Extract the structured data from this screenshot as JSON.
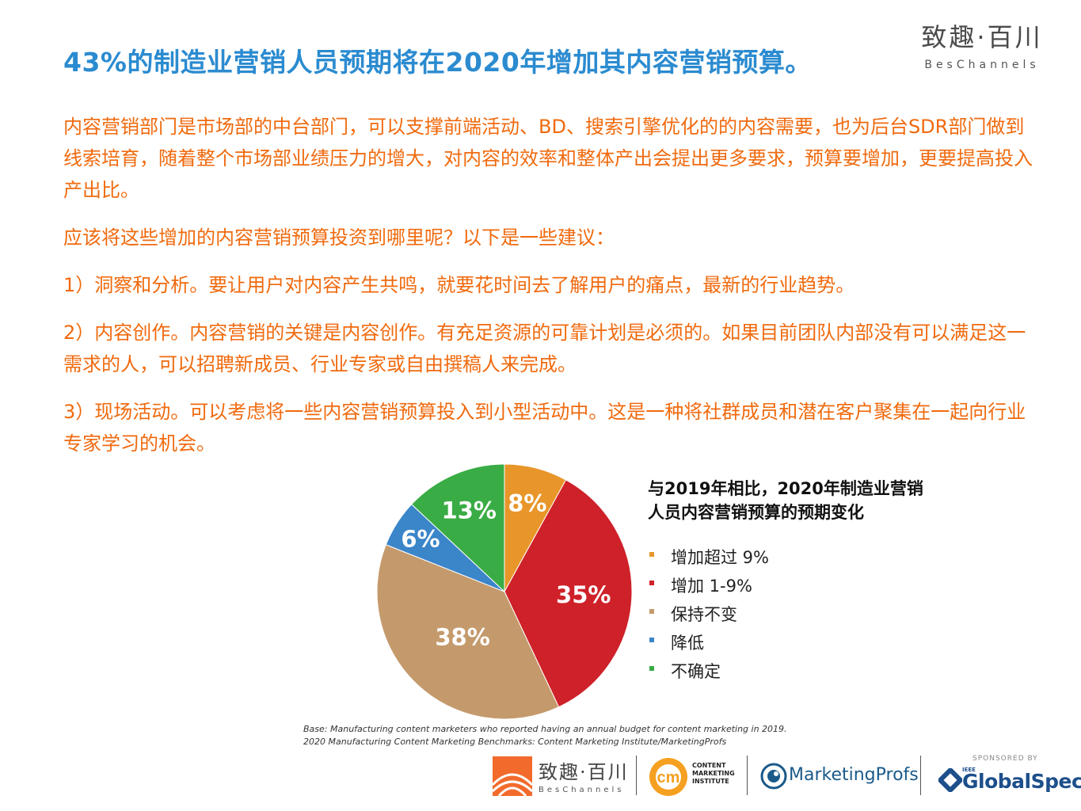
{
  "header": {
    "title": "43%的制造业营销人员预期将在2020年增加其内容营销预算。",
    "brand_cn": "致趣·百川",
    "brand_en": "BesChannels"
  },
  "body": {
    "paragraph1": "内容营销部门是市场部的中台部门，可以支撑前端活动、BD、搜索引擎优化的的内容需要，也为后台SDR部门做到线索培育，随着整个市场部业绩压力的增大，对内容的效率和整体产出会提出更多要求，预算要增加，更要提高投入产出比。",
    "question": "应该将这些增加的内容营销预算投资到哪里呢？以下是一些建议：",
    "item1": "1）洞察和分析。要让用户对内容产生共鸣，就要花时间去了解用户的痛点，最新的行业趋势。",
    "item2": "2）内容创作。内容营销的关键是内容创作。有充足资源的可靠计划是必须的。如果目前团队内部没有可以满足这一需求的人，可以招聘新成员、行业专家或自由撰稿人来完成。",
    "item3": "3）现场活动。可以考虑将一些内容营销预算投入到小型活动中。这是一种将社群成员和潜在客户聚集在一起向行业专家学习的机会。"
  },
  "chart_data": {
    "type": "pie",
    "title": "与2019年相比，2020年制造业营销人员内容营销预算的预期变化",
    "categories": [
      "增加超过 9%",
      "增加 1-9%",
      "保持不变",
      "降低",
      "不确定"
    ],
    "values": [
      8,
      35,
      38,
      6,
      13
    ],
    "labels": [
      "8%",
      "35%",
      "38%",
      "6%",
      "13%"
    ],
    "colors": [
      "#e8962a",
      "#cf2129",
      "#c49a6c",
      "#3b85c9",
      "#3aac45"
    ],
    "legend_position": "right",
    "start_angle_deg": 0,
    "direction": "clockwise"
  },
  "notes": {
    "base": "Base: Manufacturing content marketers who reported having an annual budget for content marketing in 2019.",
    "source": "2020 Manufacturing Content Marketing Benchmarks: Content Marketing Institute/MarketingProfs"
  },
  "footer": {
    "beschannels_cn": "致趣·百川",
    "beschannels_en": "BesChannels",
    "cmi_line1": "CONTENT",
    "cmi_line2": "MARKETING",
    "cmi_line3": "INSTITUTE",
    "cmi_mark": "cm",
    "marketingprofs": "MarketingProfs",
    "sponsored_by": "SPONSORED BY",
    "ieee": "IEEE",
    "globalspec": "GlobalSpec"
  }
}
